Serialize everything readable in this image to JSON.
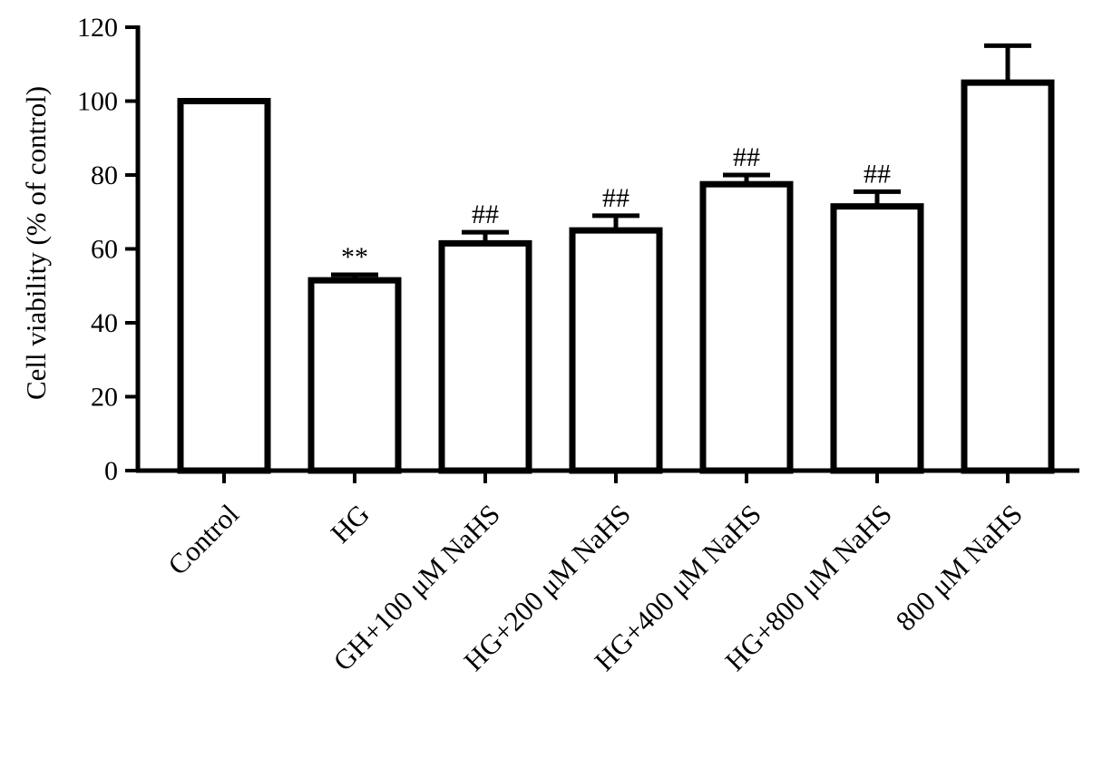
{
  "chart_data": {
    "type": "bar",
    "title": "",
    "xlabel": "",
    "ylabel": "Cell viability (% of  control)",
    "ylim": [
      0,
      120
    ],
    "yticks": [
      0,
      20,
      40,
      60,
      80,
      100,
      120
    ],
    "categories": [
      "Control",
      "HG",
      "GH+100 μM NaHS",
      "HG+200 μM NaHS",
      "HG+400 μM NaHS",
      "HG+800 μM NaHS",
      "800 μM NaHS"
    ],
    "values": [
      100,
      51.5,
      61.5,
      65,
      77.5,
      71.5,
      105
    ],
    "errors": [
      0,
      1.5,
      3,
      4,
      2.5,
      4,
      10
    ],
    "annotations": [
      "",
      "**",
      "##",
      "##",
      "##",
      "##",
      ""
    ],
    "bar_fill": "#ffffff",
    "bar_stroke": "#000000",
    "grid": false,
    "legend": "none"
  }
}
